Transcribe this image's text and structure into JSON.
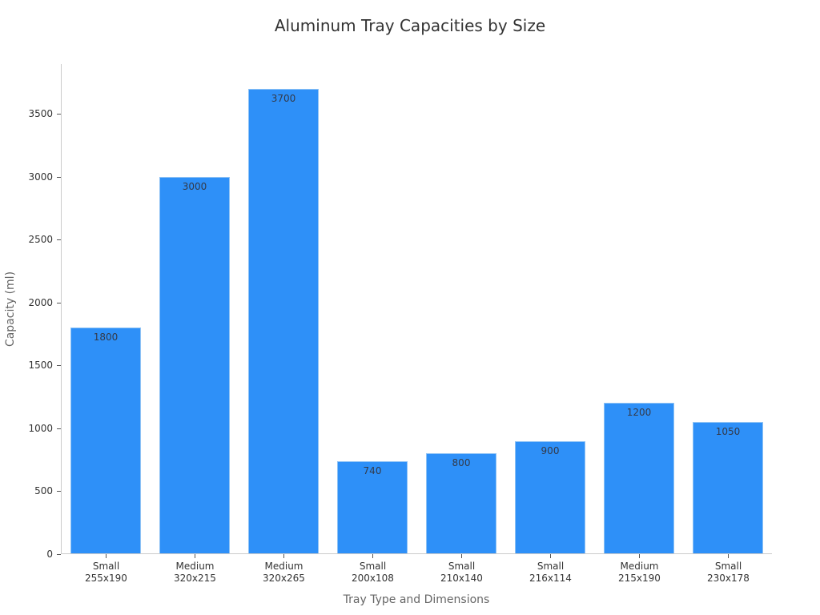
{
  "chart_data": {
    "type": "bar",
    "title": "Aluminum Tray Capacities by Size",
    "xlabel": "Tray Type and Dimensions",
    "ylabel": "Capacity (ml)",
    "categories": [
      "Small\n255x190",
      "Medium\n320x215",
      "Medium\n320x265",
      "Small\n200x108",
      "Small\n210x140",
      "Small\n216x114",
      "Medium\n215x190",
      "Small\n230x178"
    ],
    "category_lines": [
      [
        "Small",
        "255x190"
      ],
      [
        "Medium",
        "320x215"
      ],
      [
        "Medium",
        "320x265"
      ],
      [
        "Small",
        "200x108"
      ],
      [
        "Small",
        "210x140"
      ],
      [
        "Small",
        "216x114"
      ],
      [
        "Medium",
        "215x190"
      ],
      [
        "Small",
        "230x178"
      ]
    ],
    "values": [
      1800,
      3000,
      3700,
      740,
      800,
      900,
      1200,
      1050
    ],
    "data_labels": [
      "1800",
      "3000",
      "3700",
      "740",
      "800",
      "900",
      "1200",
      "1050"
    ],
    "yticks": [
      0,
      500,
      1000,
      1500,
      2000,
      2500,
      3000,
      3500
    ],
    "ytick_labels": [
      "0",
      "500",
      "1000",
      "1500",
      "2000",
      "2500",
      "3000",
      "3500"
    ],
    "ylim": [
      0,
      3890
    ],
    "grid": false,
    "legend": null,
    "colors": {
      "bar": "#2e90f8",
      "bar_edge": "#8ec2f5",
      "axis": "#cccccc"
    }
  }
}
